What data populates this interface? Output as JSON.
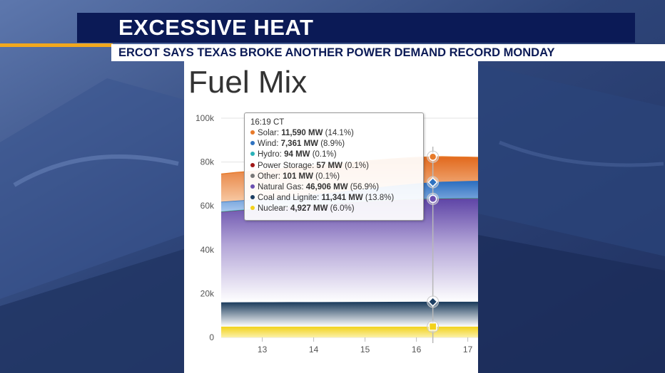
{
  "banner": {
    "title": "EXCESSIVE HEAT",
    "subtitle": "ERCOT SAYS TEXAS BROKE ANOTHER POWER DEMAND RECORD MONDAY"
  },
  "colors": {
    "banner_navy": "#0b1a56",
    "accent_gold": "#f2a81d"
  },
  "chart_data": {
    "type": "area",
    "title": "Fuel Mix",
    "xlabel": "",
    "ylabel": "",
    "xlim": [
      12.2,
      17.2
    ],
    "ylim": [
      0,
      100000
    ],
    "x_ticks": [
      13,
      14,
      15,
      16,
      17
    ],
    "y_ticks": [
      "0",
      "20k",
      "40k",
      "60k",
      "80k",
      "100k"
    ],
    "y_tick_values": [
      0,
      20000,
      40000,
      60000,
      80000,
      100000
    ],
    "grid": true,
    "legend": "tooltip",
    "x": [
      12.2,
      12.5,
      13,
      13.5,
      14,
      14.5,
      15,
      15.5,
      16,
      16.32,
      16.5,
      17,
      17.2
    ],
    "series": [
      {
        "name": "Nuclear",
        "color": "#f3d21b",
        "values": [
          4900,
          4910,
          4920,
          4920,
          4925,
          4925,
          4925,
          4926,
          4927,
          4927,
          4927,
          4927,
          4927
        ]
      },
      {
        "name": "Coal and Lignite",
        "color": "#1d3f63",
        "values": [
          11100,
          11120,
          11150,
          11180,
          11200,
          11230,
          11260,
          11300,
          11330,
          11341,
          11345,
          11350,
          11350
        ]
      },
      {
        "name": "Natural Gas",
        "color": "#6b4fb0",
        "values": [
          41200,
          41800,
          42500,
          43400,
          44200,
          45000,
          45700,
          46300,
          46700,
          46906,
          47000,
          47100,
          47100
        ]
      },
      {
        "name": "Other",
        "color": "#777777",
        "values": [
          100,
          100,
          100,
          100,
          100,
          100,
          100,
          100,
          101,
          101,
          101,
          101,
          101
        ]
      },
      {
        "name": "Power Storage",
        "color": "#a01818",
        "values": [
          50,
          50,
          52,
          53,
          54,
          55,
          55,
          56,
          57,
          57,
          57,
          57,
          57
        ]
      },
      {
        "name": "Hydro",
        "color": "#2ab2b8",
        "values": [
          90,
          90,
          92,
          92,
          93,
          93,
          93,
          94,
          94,
          94,
          94,
          94,
          94
        ]
      },
      {
        "name": "Wind",
        "color": "#2f72c0",
        "values": [
          4400,
          4300,
          4200,
          4300,
          4600,
          5000,
          5600,
          6300,
          7000,
          7361,
          7500,
          7700,
          7800
        ]
      },
      {
        "name": "Solar",
        "color": "#e77a2a",
        "values": [
          12700,
          12900,
          13100,
          13200,
          13100,
          12900,
          12700,
          12300,
          11900,
          11590,
          11400,
          10900,
          10700
        ]
      }
    ],
    "tooltip": {
      "time": "16:19 CT",
      "x": 16.32,
      "rows": [
        {
          "name": "Solar:",
          "value": "11,590 MW",
          "pct": "(14.1%)",
          "color": "#e77a2a"
        },
        {
          "name": "Wind:",
          "value": "7,361 MW",
          "pct": "(8.9%)",
          "color": "#2f72c0"
        },
        {
          "name": "Hydro:",
          "value": "94 MW",
          "pct": "(0.1%)",
          "color": "#2ab2b8"
        },
        {
          "name": "Power Storage:",
          "value": "57 MW",
          "pct": "(0.1%)",
          "color": "#a01818"
        },
        {
          "name": "Other:",
          "value": "101 MW",
          "pct": "(0.1%)",
          "color": "#777777"
        },
        {
          "name": "Natural Gas:",
          "value": "46,906 MW",
          "pct": "(56.9%)",
          "color": "#6b4fb0"
        },
        {
          "name": "Coal and Lignite:",
          "value": "11,341 MW",
          "pct": "(13.8%)",
          "color": "#1d3f63"
        },
        {
          "name": "Nuclear:",
          "value": "4,927 MW",
          "pct": "(6.0%)",
          "color": "#f3d21b"
        }
      ]
    }
  }
}
